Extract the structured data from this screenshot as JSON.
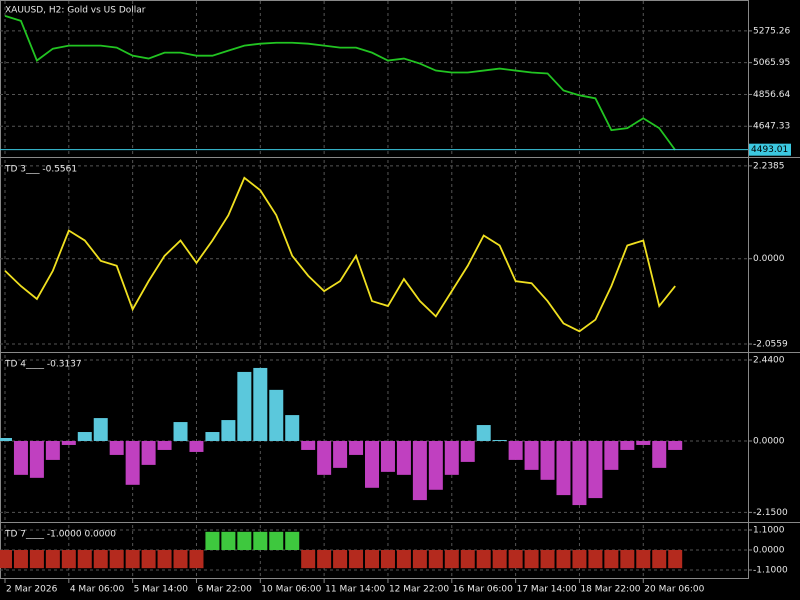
{
  "chart_data": [
    {
      "type": "line",
      "title": "XAUUSD, H2:  Gold vs US Dollar",
      "color": "#22c422",
      "x": [
        0,
        4,
        8,
        12,
        16,
        20,
        24,
        28,
        32,
        36,
        40,
        44,
        48,
        52,
        56,
        60,
        64,
        68,
        72,
        76,
        80,
        84,
        88,
        92,
        96,
        100,
        104,
        108,
        112,
        116,
        120,
        124,
        128,
        132,
        136,
        140,
        144,
        148,
        152,
        156,
        160,
        164,
        168
      ],
      "values": [
        5374,
        5341,
        5080,
        5158,
        5178,
        5178,
        5178,
        5165,
        5112,
        5093,
        5132,
        5132,
        5112,
        5112,
        5145,
        5178,
        5191,
        5197,
        5197,
        5191,
        5178,
        5165,
        5165,
        5132,
        5080,
        5093,
        5060,
        5014,
        5001,
        5001,
        5014,
        5027,
        5014,
        5001,
        4995,
        4883,
        4851,
        4831,
        4622,
        4635,
        4700,
        4635,
        4491
      ],
      "ylim": [
        4458,
        5472
      ],
      "yticks": [
        4647.33,
        4856.64,
        5065.95,
        5275.26
      ],
      "last_price": 4493.01,
      "last_price_color": "#3cc8e0",
      "grid": true
    },
    {
      "type": "line",
      "title": "TD 3___ -0.5561",
      "color": "#f0e020",
      "x": [
        0,
        4,
        8,
        12,
        16,
        20,
        24,
        28,
        32,
        36,
        40,
        44,
        48,
        52,
        56,
        60,
        64,
        68,
        72,
        76,
        80,
        84,
        88,
        92,
        96,
        100,
        104,
        108,
        112,
        116,
        120,
        124,
        128,
        132,
        136,
        140,
        144,
        148,
        152,
        156,
        160,
        164,
        168
      ],
      "values": [
        -0.29,
        -0.66,
        -0.97,
        -0.29,
        0.68,
        0.44,
        -0.05,
        -0.17,
        -1.22,
        -0.54,
        0.07,
        0.44,
        -0.1,
        0.44,
        1.05,
        1.95,
        1.65,
        1.05,
        0.07,
        -0.41,
        -0.78,
        -0.54,
        0.07,
        -1.02,
        -1.14,
        -0.49,
        -1.02,
        -1.39,
        -0.78,
        -0.17,
        0.56,
        0.32,
        -0.54,
        -0.59,
        -1.02,
        -1.56,
        -1.75,
        -1.47,
        -0.66,
        0.32,
        0.44,
        -1.14,
        -0.66
      ],
      "ylim": [
        -2.2,
        2.38
      ],
      "yticks": [
        {
          "value": -2.0559,
          "label": "-2.0559"
        },
        {
          "value": 0,
          "label": "0.0000"
        },
        {
          "value": 2.2385,
          "label": "2.2385"
        }
      ],
      "grid": true
    },
    {
      "type": "histogram",
      "title": "TD 4____ -0.3137",
      "positive_color": "#5bc8dc",
      "negative_color": "#c040c0",
      "x": [
        0,
        4,
        8,
        12,
        16,
        20,
        24,
        28,
        32,
        36,
        40,
        44,
        48,
        52,
        56,
        60,
        64,
        68,
        72,
        76,
        80,
        84,
        88,
        92,
        96,
        100,
        104,
        108,
        112,
        116,
        120,
        124,
        128,
        132,
        136,
        140,
        144,
        148,
        152,
        156,
        160,
        164,
        168
      ],
      "values": [
        0.09,
        -1.02,
        -1.11,
        -0.57,
        -0.12,
        0.27,
        0.69,
        -0.42,
        -1.32,
        -0.72,
        -0.27,
        0.57,
        -0.33,
        0.27,
        0.63,
        2.08,
        2.2,
        1.54,
        0.78,
        -0.27,
        -1.02,
        -0.81,
        -0.42,
        -1.41,
        -0.93,
        -1.02,
        -1.78,
        -1.47,
        -1.02,
        -0.63,
        0.48,
        0.03,
        -0.57,
        -0.87,
        -1.17,
        -1.63,
        -1.93,
        -1.72,
        -0.87,
        -0.27,
        -0.12,
        -0.81,
        -0.27
      ],
      "ylim": [
        -2.38,
        2.59
      ],
      "yticks": [
        {
          "value": -2.15,
          "label": "-2.1500"
        },
        {
          "value": 0,
          "label": "0.0000"
        },
        {
          "value": 2.44,
          "label": "2.4400"
        }
      ],
      "grid": true
    },
    {
      "type": "histogram",
      "title": "TD 7____ -1.0000 0.0000",
      "positive_color": "#3ec83e",
      "negative_color": "#b42a1e",
      "x": [
        0,
        4,
        8,
        12,
        16,
        20,
        24,
        28,
        32,
        36,
        40,
        44,
        48,
        52,
        56,
        60,
        64,
        68,
        72,
        76,
        80,
        84,
        88,
        92,
        96,
        100,
        104,
        108,
        112,
        116,
        120,
        124,
        128,
        132,
        136,
        140,
        144,
        148,
        152,
        156,
        160,
        164,
        168
      ],
      "values": [
        -1,
        -1,
        -1,
        -1,
        -1,
        -1,
        -1,
        -1,
        -1,
        -1,
        -1,
        -1,
        -1,
        1,
        1,
        1,
        1,
        1,
        1,
        -1,
        -1,
        -1,
        -1,
        -1,
        -1,
        -1,
        -1,
        -1,
        -1,
        -1,
        -1,
        -1,
        -1,
        -1,
        -1,
        -1,
        -1,
        -1,
        -1,
        -1,
        -1,
        -1,
        -1
      ],
      "ylim": [
        -1.54,
        1.375
      ],
      "yticks": [
        {
          "value": -1.1,
          "label": "-1.1000"
        },
        {
          "value": 0,
          "label": "0.0000"
        },
        {
          "value": 1.1,
          "label": "1.1000"
        }
      ],
      "grid": true,
      "xlim": [
        -1,
        186
      ],
      "xticks": [
        {
          "value": 0,
          "label": "2 Mar 2026"
        },
        {
          "value": 16,
          "label": "4 Mar 06:00"
        },
        {
          "value": 32,
          "label": "5 Mar 14:00"
        },
        {
          "value": 48,
          "label": "6 Mar 22:00"
        },
        {
          "value": 64,
          "label": "10 Mar 06:00"
        },
        {
          "value": 80,
          "label": "11 Mar 14:00"
        },
        {
          "value": 96,
          "label": "12 Mar 22:00"
        },
        {
          "value": 112,
          "label": "16 Mar 06:00"
        },
        {
          "value": 128,
          "label": "17 Mar 14:00"
        },
        {
          "value": 144,
          "label": "18 Mar 22:00"
        },
        {
          "value": 160,
          "label": "20 Mar 06:00"
        }
      ]
    }
  ]
}
